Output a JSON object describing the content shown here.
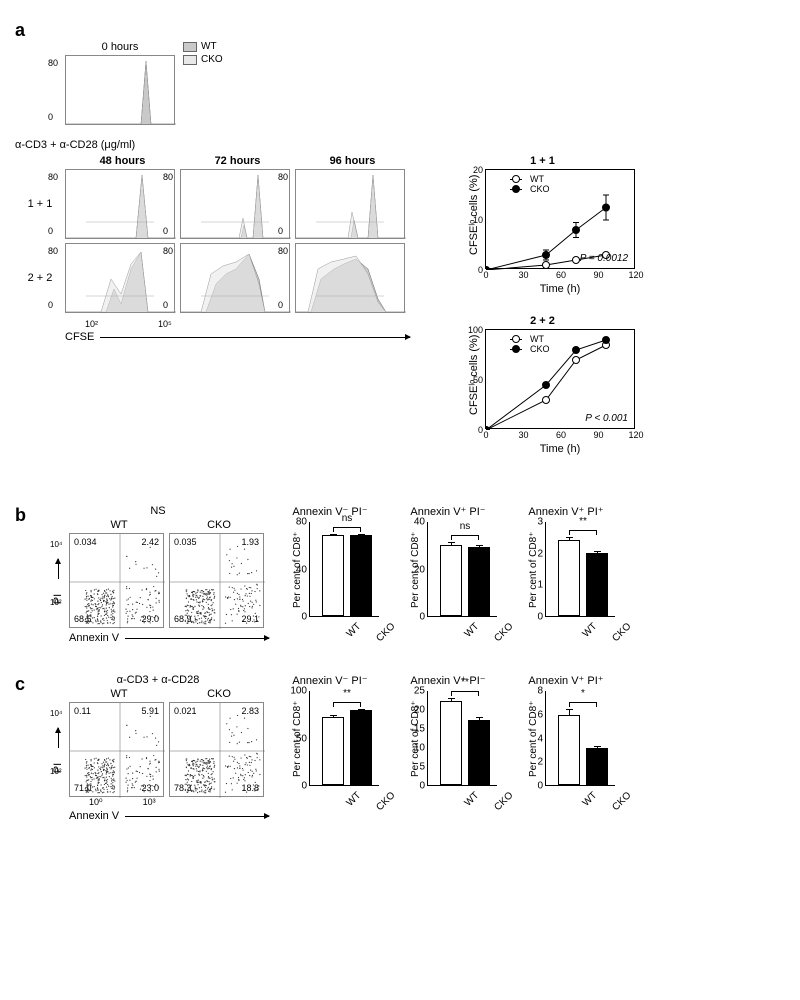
{
  "colors": {
    "wt_fill": "#c9c9c9",
    "cko_fill": "#e8e8e8",
    "box_border": "#888888",
    "axis": "#000000",
    "bar_wt": "#ffffff",
    "bar_cko": "#000000",
    "marker_wt": "#ffffff",
    "marker_cko": "#000000"
  },
  "panel_a": {
    "label": "a",
    "top_histo_title": "0 hours",
    "legend": [
      {
        "label": "WT",
        "color": "#c9c9c9"
      },
      {
        "label": "CKO",
        "color": "#e8e8e8"
      }
    ],
    "stim_label": "α-CD3 + α-CD28 (μg/ml)",
    "col_titles": [
      "48 hours",
      "72 hours",
      "96 hours"
    ],
    "row_labels": [
      "1 + 1",
      "2 + 2"
    ],
    "y_ticks": [
      0,
      80
    ],
    "x_axis_label": "CFSE",
    "x_log_ticks": [
      "10²",
      "10⁵"
    ],
    "line_charts": [
      {
        "title": "1 + 1",
        "legend": [
          "WT",
          "CKO"
        ],
        "ylabel": "CFSEᵈᵒ cells (%)",
        "ylabel_real": "CFSEˡᵒ cells (%)",
        "ylim": [
          0,
          20
        ],
        "ytick_step": 10,
        "xlim": [
          0,
          120
        ],
        "xtick_step": 30,
        "pval": "P = 0.0012",
        "series": [
          {
            "name": "WT",
            "color": "#ffffff",
            "points": [
              [
                0,
                0
              ],
              [
                48,
                1
              ],
              [
                72,
                2
              ],
              [
                96,
                3
              ]
            ]
          },
          {
            "name": "CKO",
            "color": "#000000",
            "points": [
              [
                0,
                0
              ],
              [
                48,
                3
              ],
              [
                72,
                8
              ],
              [
                96,
                12.5
              ]
            ],
            "err": [
              0,
              1,
              1.5,
              2.5
            ]
          }
        ]
      },
      {
        "title": "2 + 2",
        "legend": [
          "WT",
          "CKO"
        ],
        "ylabel": "CFSEˡᵒ cells (%)",
        "ylim": [
          0,
          100
        ],
        "ytick_step": 50,
        "xlim": [
          0,
          120
        ],
        "xtick_step": 30,
        "pval": "P < 0.001",
        "series": [
          {
            "name": "WT",
            "color": "#ffffff",
            "points": [
              [
                0,
                0
              ],
              [
                48,
                30
              ],
              [
                72,
                70
              ],
              [
                96,
                85
              ]
            ]
          },
          {
            "name": "CKO",
            "color": "#000000",
            "points": [
              [
                0,
                0
              ],
              [
                48,
                45
              ],
              [
                72,
                80
              ],
              [
                96,
                90
              ]
            ]
          }
        ]
      }
    ]
  },
  "panel_b": {
    "label": "b",
    "title": "NS",
    "scatter_cols": [
      "WT",
      "CKO"
    ],
    "y_label": "PI",
    "x_label": "Annexin V",
    "quadrants": [
      {
        "ul": "0.034",
        "ur": "2.42",
        "ll": "68.5",
        "lr": "29.0"
      },
      {
        "ul": "0.035",
        "ur": "1.93",
        "ll": "68.9",
        "lr": "29.1"
      }
    ],
    "bars": [
      {
        "title": "Annexin V⁻ PI⁻",
        "ylabel": "Per cent of CD8⁺",
        "ylim": [
          0,
          80
        ],
        "ytick": 40,
        "wt": 68,
        "cko": 68,
        "wt_err": 1,
        "cko_err": 1,
        "sig": "ns"
      },
      {
        "title": "Annexin V⁺ PI⁻",
        "ylabel": "Per cent of CD8⁺",
        "ylim": [
          0,
          40
        ],
        "ytick": 20,
        "wt": 30,
        "cko": 29,
        "wt_err": 1,
        "cko_err": 1,
        "sig": "ns"
      },
      {
        "title": "Annexin V⁺ PI⁺",
        "ylabel": "Per cent of CD8⁺",
        "ylim": [
          0,
          3
        ],
        "ytick": 1,
        "wt": 2.4,
        "cko": 2.0,
        "wt_err": 0.1,
        "cko_err": 0.05,
        "sig": "**"
      }
    ]
  },
  "panel_c": {
    "label": "c",
    "title": "α-CD3 + α-CD28",
    "scatter_cols": [
      "WT",
      "CKO"
    ],
    "y_label": "PI",
    "x_label": "Annexin V",
    "x_log_ticks": [
      "10⁰",
      "10³"
    ],
    "quadrants": [
      {
        "ul": "0.11",
        "ur": "5.91",
        "ll": "71.0",
        "lr": "23.0"
      },
      {
        "ul": "0.021",
        "ur": "2.83",
        "ll": "78.3",
        "lr": "18.8"
      }
    ],
    "bars": [
      {
        "title": "Annexin V⁻ PI⁻",
        "ylabel": "Per cent of CD8⁺",
        "ylim": [
          0,
          100
        ],
        "ytick": 50,
        "wt": 72,
        "cko": 79,
        "wt_err": 2,
        "cko_err": 1,
        "sig": "**"
      },
      {
        "title": "Annexin V⁺ PI⁻",
        "ylabel": "Per cent of CD8⁺",
        "ylim": [
          0,
          25
        ],
        "ytick": 5,
        "wt": 22,
        "cko": 17,
        "wt_err": 1,
        "cko_err": 1,
        "sig": "**"
      },
      {
        "title": "Annexin V⁺ PI⁺",
        "ylabel": "Per cent of CD8⁺",
        "ylim": [
          0,
          8
        ],
        "ytick": 2,
        "wt": 5.9,
        "cko": 3.1,
        "wt_err": 0.5,
        "cko_err": 0.2,
        "sig": "*"
      }
    ]
  }
}
